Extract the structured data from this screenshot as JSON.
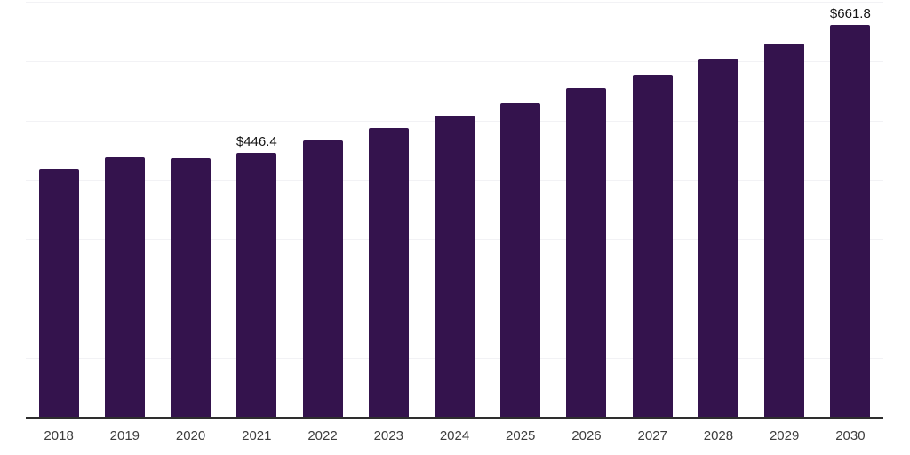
{
  "chart_data": {
    "type": "bar",
    "title": "",
    "xlabel": "",
    "ylabel": "",
    "categories": [
      "2018",
      "2019",
      "2020",
      "2021",
      "2022",
      "2023",
      "2024",
      "2025",
      "2026",
      "2027",
      "2028",
      "2029",
      "2030"
    ],
    "values": [
      418.6,
      438.0,
      437.2,
      446.4,
      467.0,
      487.0,
      507.9,
      530.2,
      555.2,
      578.1,
      605.0,
      630.4,
      661.8
    ],
    "data_labels": {
      "2021": "$446.4",
      "2030": "$661.8"
    },
    "ylim": [
      0,
      700
    ],
    "gridline_interval": 100,
    "grid": true,
    "legend": false,
    "colors": {
      "bar": "#34134d",
      "gridline": "#f2f2f5",
      "axis_line": "#2e2e2e",
      "tick_label": "#3d3d3d",
      "data_label": "#141414"
    }
  }
}
